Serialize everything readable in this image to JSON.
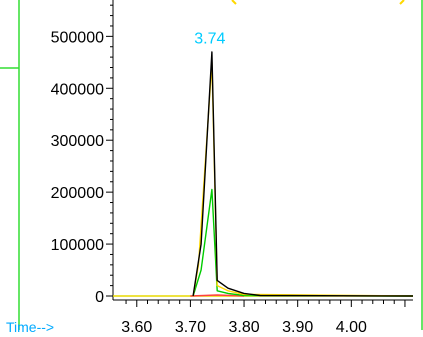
{
  "chart_data": {
    "type": "line",
    "xlabel": "Time-->",
    "ylabel": "",
    "xlim": [
      3.565,
      4.115
    ],
    "ylim": [
      0,
      570000
    ],
    "x_ticks": [
      "3.60",
      "3.70",
      "3.80",
      "3.90",
      "4.00"
    ],
    "x_tick_values": [
      3.6,
      3.7,
      3.8,
      3.9,
      4.0
    ],
    "y_ticks": [
      "0",
      "100000",
      "200000",
      "300000",
      "400000",
      "500000"
    ],
    "y_tick_values": [
      0,
      100000,
      200000,
      300000,
      400000,
      500000
    ],
    "grid": false,
    "annotations": [
      {
        "text": "3.74",
        "x": 3.74,
        "y": 480000
      }
    ],
    "series": [
      {
        "color": "#000000",
        "points": [
          [
            3.705,
            0
          ],
          [
            3.72,
            100000
          ],
          [
            3.74,
            470000
          ],
          [
            3.75,
            30000
          ],
          [
            3.77,
            15000
          ],
          [
            3.8,
            5000
          ],
          [
            3.83,
            1000
          ],
          [
            4.115,
            0
          ]
        ]
      },
      {
        "color": "#ffd800",
        "points": [
          [
            3.705,
            0
          ],
          [
            3.715,
            60000
          ],
          [
            3.74,
            450000
          ],
          [
            3.75,
            20000
          ],
          [
            3.77,
            10000
          ],
          [
            3.8,
            3000
          ],
          [
            4.115,
            0
          ]
        ]
      },
      {
        "color": "#00cc00",
        "points": [
          [
            3.705,
            0
          ],
          [
            3.72,
            50000
          ],
          [
            3.74,
            205000
          ],
          [
            3.75,
            10000
          ],
          [
            3.77,
            5000
          ],
          [
            3.8,
            1000
          ],
          [
            4.115,
            0
          ]
        ]
      },
      {
        "color": "#ff4040",
        "points": [
          [
            3.7,
            0
          ],
          [
            3.75,
            2000
          ],
          [
            3.8,
            0
          ]
        ]
      }
    ],
    "colors": {
      "frame": "#33dd33",
      "time_label": "#00aaff",
      "peak_label": "#00ccff",
      "baseline": "#e8d800"
    }
  }
}
